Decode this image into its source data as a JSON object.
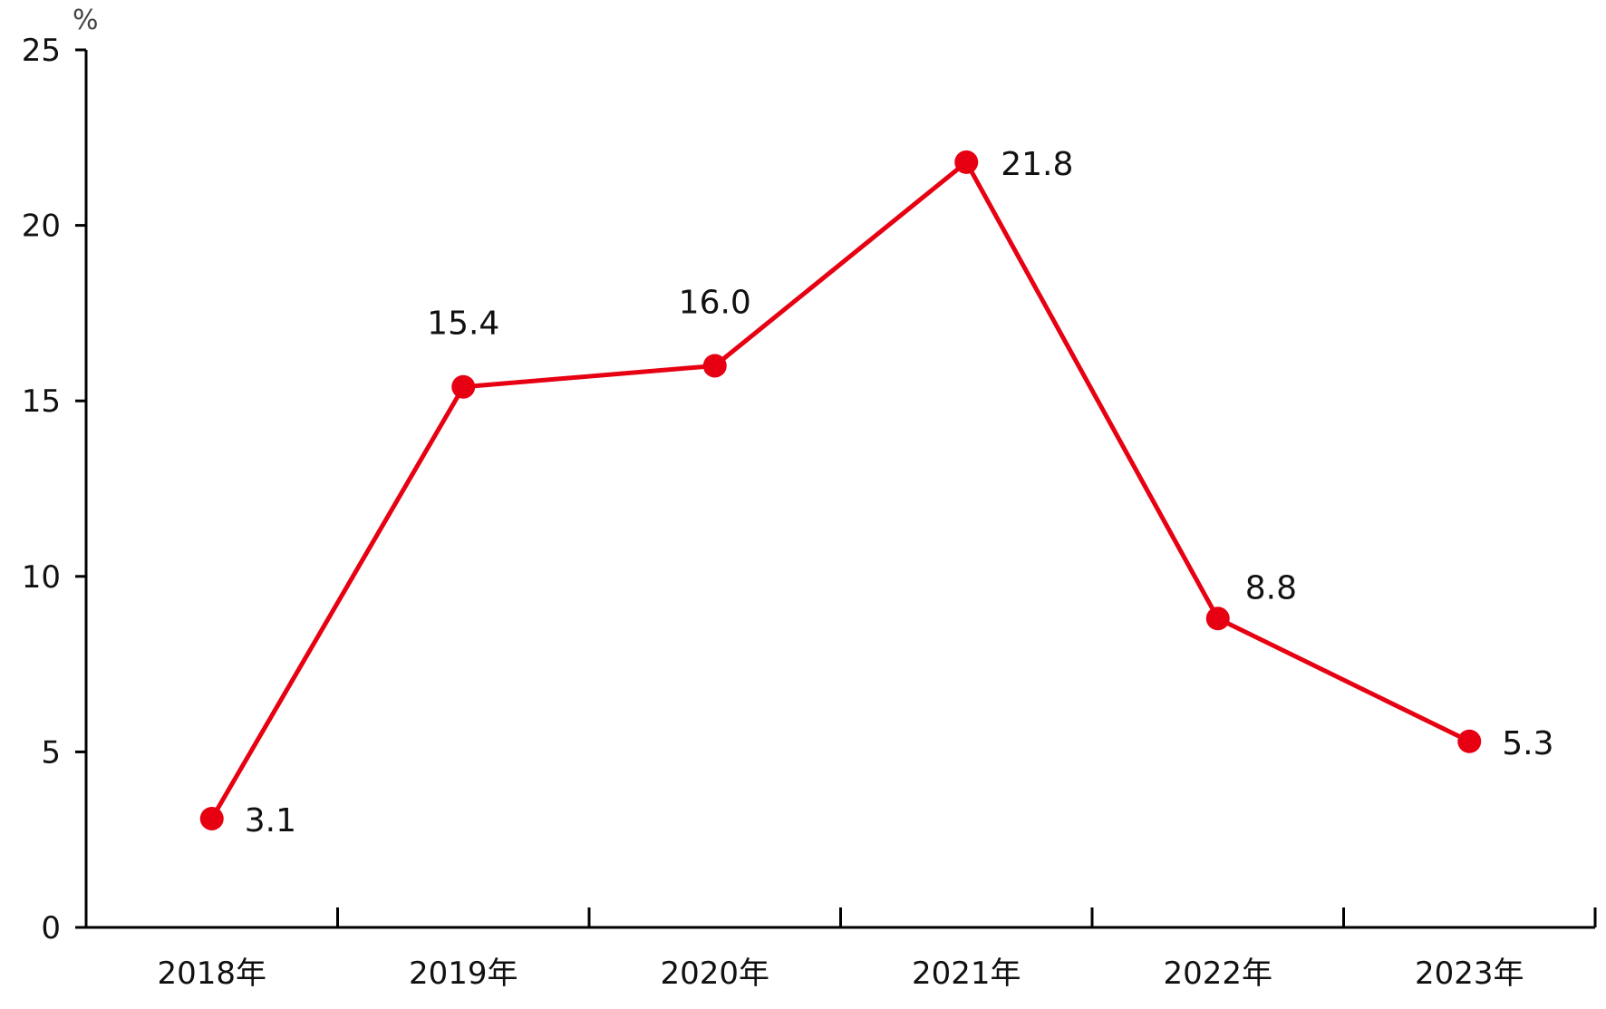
{
  "chart_data": {
    "type": "line",
    "title": "",
    "xlabel": "",
    "ylabel": "",
    "unit": "%",
    "categories": [
      "2018年",
      "2019年",
      "2020年",
      "2021年",
      "2022年",
      "2023年"
    ],
    "series": [
      {
        "values": [
          3.1,
          15.4,
          16.0,
          21.8,
          8.8,
          5.3
        ],
        "value_labels": [
          "3.1",
          "15.4",
          "16.0",
          "21.8",
          "8.8",
          "5.3"
        ],
        "color": "#e60012"
      }
    ],
    "ylim": [
      0,
      25
    ],
    "yticks": [
      "0",
      "5",
      "10",
      "15",
      "20",
      "25"
    ],
    "grid": false,
    "legend": "none"
  }
}
